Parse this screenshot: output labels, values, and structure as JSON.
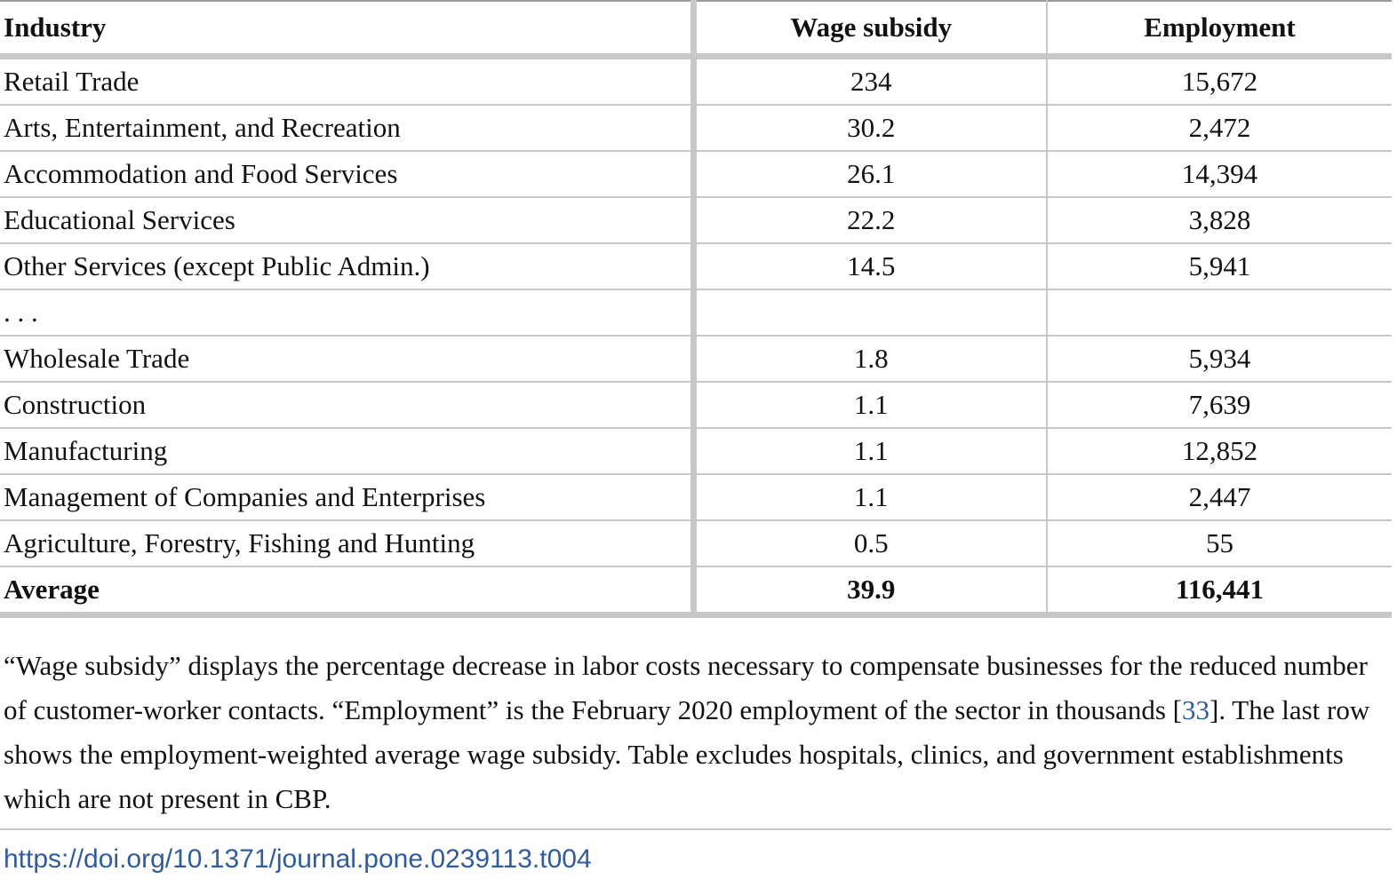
{
  "table": {
    "headers": [
      "Industry",
      "Wage subsidy",
      "Employment"
    ],
    "rows": [
      {
        "industry": "Retail Trade",
        "wage_subsidy": "234",
        "employment": "15,672"
      },
      {
        "industry": "Arts, Entertainment, and Recreation",
        "wage_subsidy": "30.2",
        "employment": "2,472"
      },
      {
        "industry": "Accommodation and Food Services",
        "wage_subsidy": "26.1",
        "employment": "14,394"
      },
      {
        "industry": "Educational Services",
        "wage_subsidy": "22.2",
        "employment": "3,828"
      },
      {
        "industry": "Other Services (except Public Admin.)",
        "wage_subsidy": "14.5",
        "employment": "5,941"
      },
      {
        "industry": ". . .",
        "wage_subsidy": "",
        "employment": ""
      },
      {
        "industry": "Wholesale Trade",
        "wage_subsidy": "1.8",
        "employment": "5,934"
      },
      {
        "industry": "Construction",
        "wage_subsidy": "1.1",
        "employment": "7,639"
      },
      {
        "industry": "Manufacturing",
        "wage_subsidy": "1.1",
        "employment": "12,852"
      },
      {
        "industry": "Management of Companies and Enterprises",
        "wage_subsidy": "1.1",
        "employment": "2,447"
      },
      {
        "industry": "Agriculture, Forestry, Fishing and Hunting",
        "wage_subsidy": "0.5",
        "employment": "55"
      }
    ],
    "average": {
      "label": "Average",
      "wage_subsidy": "39.9",
      "employment": "116,441"
    }
  },
  "footnote": {
    "before_ref": "“Wage subsidy” displays the percentage decrease in labor costs necessary to compensate businesses for the reduced number of customer-worker contacts. “Employment” is the February 2020 employment of the sector in thousands [",
    "ref": "33",
    "after_ref": "]. The last row shows the employment-weighted average wage subsidy. Table excludes hospitals, clinics, and government establishments which are not present in CBP."
  },
  "doi": "https://doi.org/10.1371/journal.pone.0239113.t004",
  "colors": {
    "link": "#2f5c9c",
    "rule": "#c8c8c8"
  }
}
